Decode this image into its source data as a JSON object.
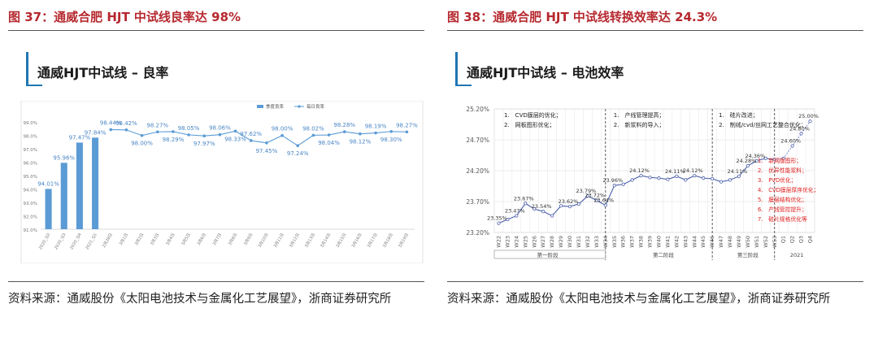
{
  "left": {
    "figure_title": "图 37：通威合肥 HJT 中试线良率达 98%",
    "inner_title": "通威HJT中试线 – 良率",
    "source": "资料来源：通威股份《太阳电池技术与金属化工艺展望》，浙商证券研究所",
    "accent_color": "#1f77b4",
    "title_color": "#b6292f"
  },
  "right": {
    "figure_title": "图 38：通威合肥 HJT 中试线转换效率达 24.3%",
    "inner_title": "通威HJT中试线 – 电池效率",
    "source": "资料来源：通威股份《太阳电池技术与金属化工艺展望》，浙商证券研究所",
    "title_color": "#b6292f"
  },
  "chart_data": [
    {
      "type": "bar",
      "legend": [
        "季度良率",
        "每日良率"
      ],
      "legend_position": "top-right",
      "y_ticks": [
        "91.0%",
        "92.0%",
        "93.0%",
        "94.0%",
        "95.0%",
        "96.0%",
        "97.0%",
        "98.0%",
        "99.0%"
      ],
      "ylim": [
        91,
        99.5
      ],
      "categories": [
        "2020_Q2",
        "2020_Q3",
        "2020_Q4",
        "2021_Q1",
        "2月28日",
        "3月1日",
        "3月2日",
        "3月3日",
        "3月4日",
        "3月5日",
        "3月6日",
        "3月7日",
        "3月8日",
        "3月9日",
        "3月10日",
        "3月11日",
        "3月12日",
        "3月13日",
        "3月14日",
        "3月15日",
        "3月16日",
        "3月17日",
        "3月18日",
        "3月19日"
      ],
      "bars": {
        "name": "季度良率",
        "values": [
          94.01,
          95.96,
          97.47,
          97.84
        ],
        "labels": [
          "94.01%",
          "95.96%",
          "97.47%",
          "97.84%"
        ]
      },
      "line": {
        "name": "每日良率",
        "values": [
          98.44,
          98.42,
          98.0,
          98.27,
          98.29,
          98.05,
          97.97,
          98.06,
          98.33,
          97.62,
          97.45,
          98.0,
          97.24,
          98.02,
          98.04,
          98.28,
          98.12,
          98.19,
          98.3,
          98.27
        ],
        "labels": [
          "98.44%",
          "98.42%",
          "98.00%",
          "98.27%",
          "98.29%",
          "98.05%",
          "97.97%",
          "98.06%",
          "98.33%",
          "97.62%",
          "97.45%",
          "98.00%",
          "97.24%",
          "98.02%",
          "98.04%",
          "98.28%",
          "98.12%",
          "98.19%",
          "98.30%",
          "98.27%"
        ]
      },
      "grid": false
    },
    {
      "type": "line",
      "y_ticks": [
        "23.20%",
        "23.70%",
        "24.20%",
        "24.70%",
        "25.20%"
      ],
      "ylim": [
        23.2,
        25.2
      ],
      "x": [
        "W22",
        "W23",
        "W24",
        "W25",
        "W26",
        "W27",
        "W28",
        "W29",
        "W30",
        "W31",
        "W32",
        "W33",
        "W34",
        "W35",
        "W36",
        "W37",
        "W38",
        "W39",
        "W40",
        "W41",
        "W42",
        "W43",
        "W44",
        "W45",
        "W46",
        "W47",
        "W48",
        "W49",
        "W50",
        "W51",
        "W52",
        "W53",
        "Q1",
        "Q2",
        "Q3",
        "Q4"
      ],
      "phases": [
        "第一阶段",
        "第二阶段",
        "第三阶段",
        "2021"
      ],
      "series": [
        {
          "values": [
            23.35,
            23.41,
            23.47,
            23.67,
            23.58,
            23.54,
            23.47,
            23.63,
            23.62,
            23.66,
            23.79,
            23.72,
            23.64,
            23.96,
            23.98,
            24.05,
            24.12,
            24.09,
            24.08,
            24.06,
            24.11,
            24.05,
            24.12,
            24.08,
            24.07,
            24.02,
            24.05,
            24.11,
            24.28,
            24.36,
            24.4,
            24.38,
            24.4,
            24.6,
            24.8,
            25.0
          ]
        }
      ],
      "point_labels": [
        {
          "i": 0,
          "t": "23.35%"
        },
        {
          "i": 2,
          "t": "23.47%"
        },
        {
          "i": 3,
          "t": "23.67%"
        },
        {
          "i": 5,
          "t": "23.54%"
        },
        {
          "i": 8,
          "t": "23.62%"
        },
        {
          "i": 10,
          "t": "23.79%"
        },
        {
          "i": 11,
          "t": "23.72%"
        },
        {
          "i": 12,
          "t": "23.64%"
        },
        {
          "i": 13,
          "t": "23.96%"
        },
        {
          "i": 16,
          "t": "24.12%"
        },
        {
          "i": 20,
          "t": "24.11%"
        },
        {
          "i": 22,
          "t": "24.12%"
        },
        {
          "i": 27,
          "t": "24.11%"
        },
        {
          "i": 28,
          "t": "24.28%"
        },
        {
          "i": 29,
          "t": "24.36%"
        },
        {
          "i": 33,
          "t": "24.60%"
        },
        {
          "i": 34,
          "t": "24.80%"
        },
        {
          "i": 35,
          "t": "25.00%"
        }
      ],
      "annotations": {
        "phase1": [
          "1.　CVD膜层的优化；",
          "2.　网板图形优化；"
        ],
        "phase2": [
          "1.　产线管理提高；",
          "2.　新浆料的导入；"
        ],
        "phase3": [
          "1.　硅片改进；",
          "2.　制绒/cvd/丝网工艺整合优化；"
        ],
        "roadmap": [
          "1.　新网版图形；",
          "2.　优异性能浆料；",
          "3.　PVD优化；",
          "4.　CVD膜层厚序优化；",
          "5.　膜层结构优化；",
          "6.　产线管控提升；",
          "7.　硅片规格优化等"
        ]
      },
      "grid": true
    }
  ]
}
